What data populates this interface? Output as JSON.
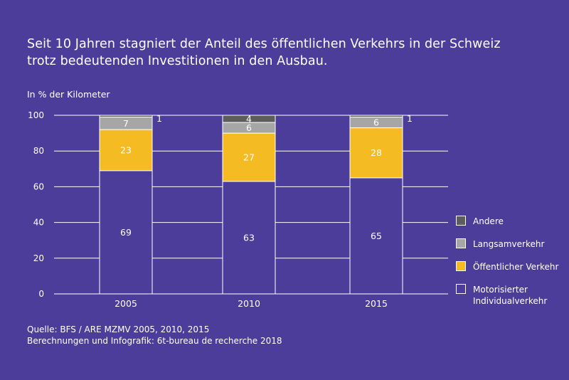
{
  "title_lines": [
    "Seit 10 Jahren stagniert der Anteil des öffentlichen Verkehrs in der Schweiz",
    "trotz bedeutenden Investitionen in den Ausbau."
  ],
  "unit_label": "In % der Kilometer",
  "source_lines": [
    "Quelle: BFS / ARE MZMV 2005, 2010, 2015",
    "Berechnungen und Infografik: 6t-bureau de recherche 2018"
  ],
  "colors": {
    "background": "#4d3d9a",
    "grid": "#ffffff"
  },
  "chart_data": {
    "type": "bar",
    "stacked": true,
    "categories": [
      "2005",
      "2010",
      "2015"
    ],
    "ylim": [
      0,
      100
    ],
    "yticks": [
      "0",
      "20",
      "40",
      "60",
      "80",
      "100"
    ],
    "ylabel": "In % der Kilometer",
    "grid": true,
    "legend_position": "right",
    "series": [
      {
        "name": "Motorisierter Individualverkehr",
        "legend_lines": [
          "Motorisierter",
          "Individualverkehr"
        ],
        "color": "#4d3d9a",
        "values": [
          69,
          63,
          65
        ],
        "labels": [
          "69",
          "63",
          "65"
        ]
      },
      {
        "name": "Öffentlicher Verkehr",
        "legend_lines": [
          "Öffentlicher Verkehr"
        ],
        "color": "#f5bb22",
        "values": [
          23,
          27,
          28
        ],
        "labels": [
          "23",
          "27",
          "28"
        ]
      },
      {
        "name": "Langsamverkehr",
        "legend_lines": [
          "Langsamverkehr"
        ],
        "color": "#a6a6a6",
        "values": [
          7,
          6,
          6
        ],
        "labels": [
          "7",
          "6",
          "6"
        ]
      },
      {
        "name": "Andere",
        "legend_lines": [
          "Andere"
        ],
        "color": "#5d5d5d",
        "values": [
          1,
          4,
          1
        ],
        "labels": [
          "1",
          "4",
          "1"
        ]
      }
    ]
  }
}
